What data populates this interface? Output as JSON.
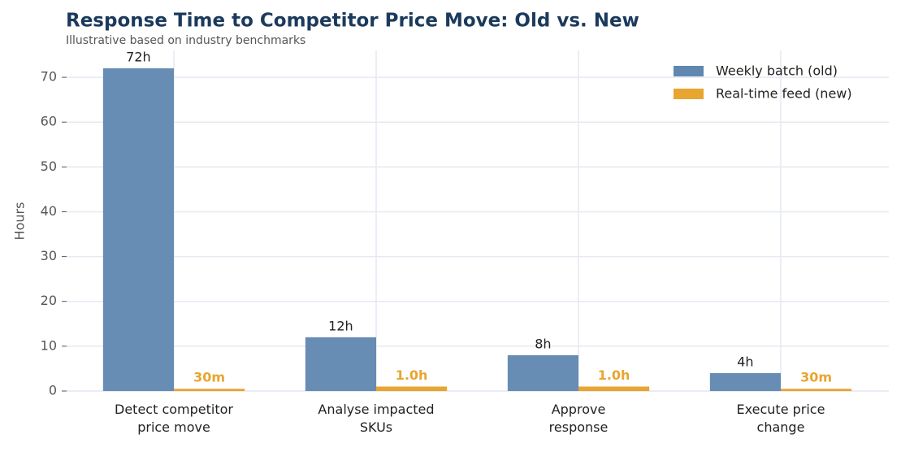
{
  "chart_data": {
    "type": "bar",
    "title": "Response Time to Competitor Price Move: Old vs. New",
    "subtitle": "Illustrative based on industry benchmarks",
    "y_label": "Hours",
    "categories": [
      "Detect competitor\nprice move",
      "Analyse impacted\nSKUs",
      "Approve\nresponse",
      "Execute price\nchange"
    ],
    "series": [
      {
        "name": "Weekly batch (old)",
        "color": "#5f87b0",
        "values": [
          72,
          12,
          8,
          4
        ],
        "value_labels": [
          "72h",
          "12h",
          "8h",
          "4h"
        ]
      },
      {
        "name": "Real-time feed (new)",
        "color": "#e8a530",
        "values": [
          0.5,
          1.0,
          1.0,
          0.5
        ],
        "value_labels": [
          "30m",
          "1.0h",
          "1.0h",
          "30m"
        ]
      }
    ],
    "ylim": [
      0,
      76
    ],
    "yticks": [
      0,
      10,
      20,
      30,
      40,
      50,
      60,
      70
    ],
    "grid": true,
    "legend": "upper right"
  }
}
